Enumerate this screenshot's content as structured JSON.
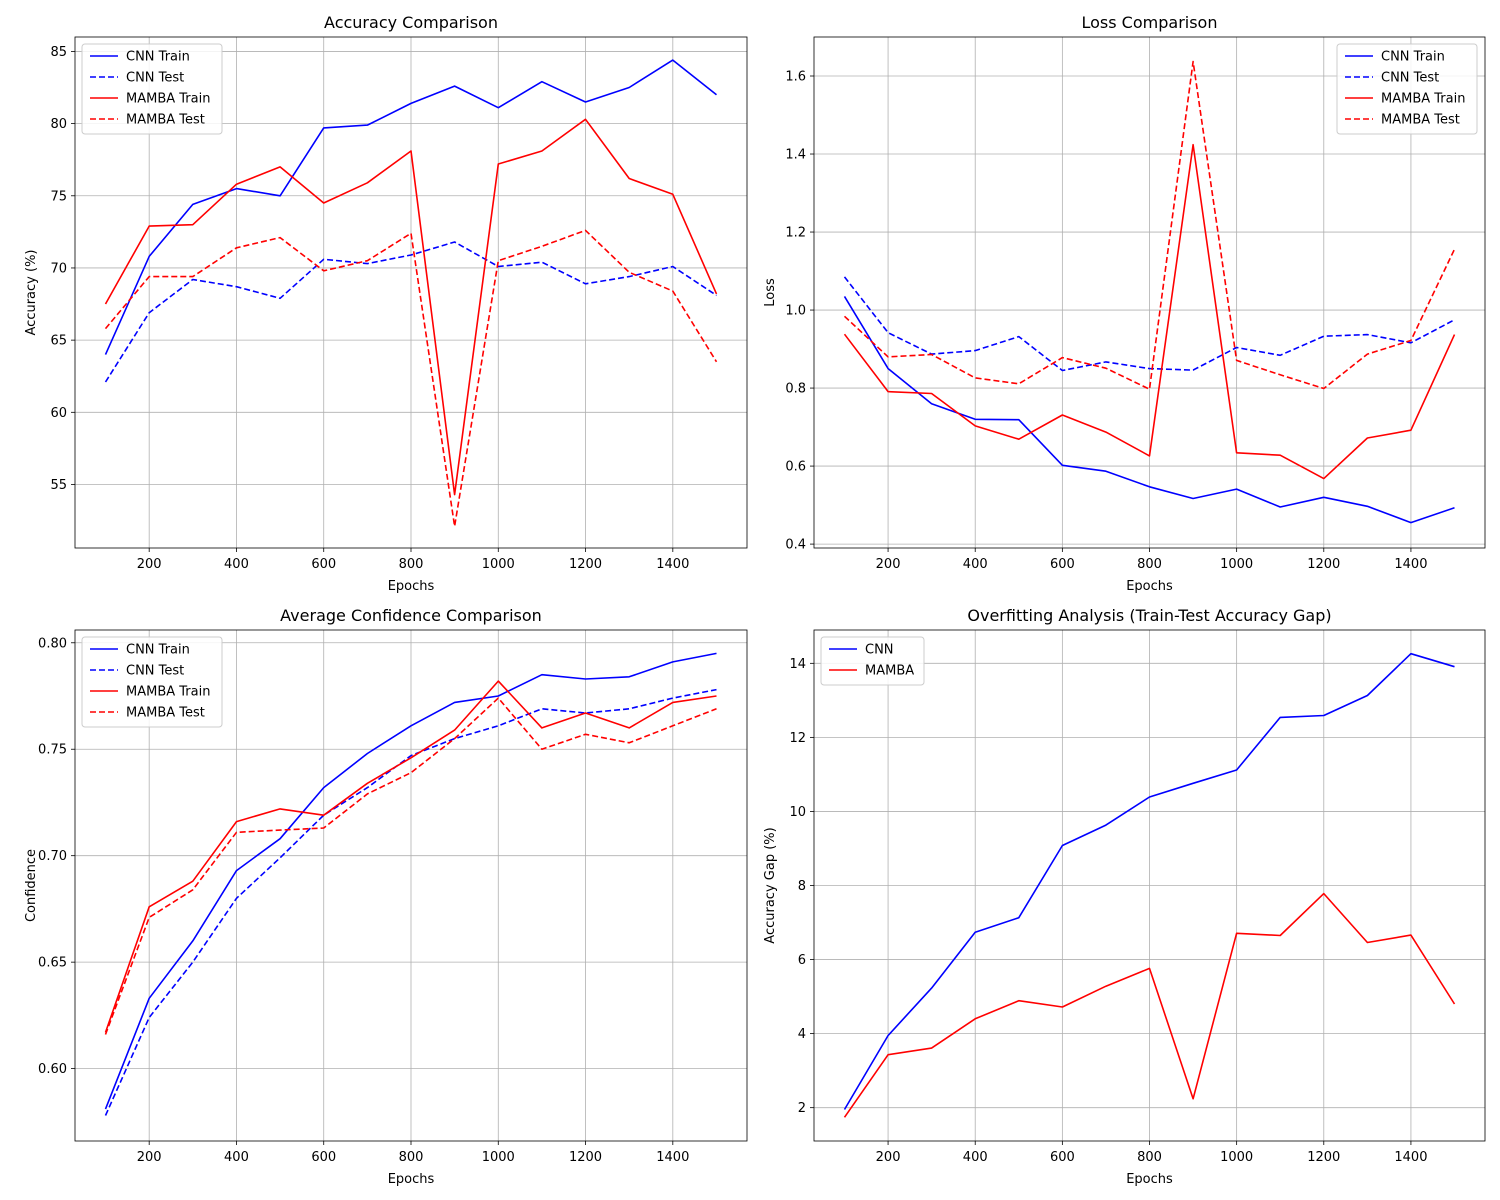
{
  "chart_data": [
    {
      "type": "line",
      "title": "Accuracy Comparison",
      "xlabel": "Epochs",
      "ylabel": "Accuracy (%)",
      "xlim": [
        30,
        1570
      ],
      "ylim": [
        50.6,
        86
      ],
      "xticks": [
        200,
        400,
        600,
        800,
        1000,
        1200,
        1400
      ],
      "yticks": [
        55,
        60,
        65,
        70,
        75,
        80,
        85
      ],
      "grid": true,
      "legend": "top-left",
      "x": [
        100,
        200,
        300,
        400,
        500,
        600,
        700,
        800,
        900,
        1000,
        1100,
        1200,
        1300,
        1400,
        1500
      ],
      "series": [
        {
          "name": "CNN Train",
          "color": "#0000ff",
          "dash": "solid",
          "values": [
            64.0,
            70.8,
            74.4,
            75.5,
            75.0,
            79.7,
            79.9,
            81.4,
            82.6,
            81.1,
            82.9,
            81.5,
            82.5,
            84.4,
            82.0
          ]
        },
        {
          "name": "CNN Test",
          "color": "#0000ff",
          "dash": "dashed",
          "values": [
            62.1,
            66.9,
            69.2,
            68.7,
            67.9,
            70.6,
            70.3,
            70.9,
            71.8,
            70.1,
            70.4,
            68.9,
            69.4,
            70.1,
            68.1
          ]
        },
        {
          "name": "MAMBA Train",
          "color": "#ff0000",
          "dash": "solid",
          "values": [
            67.5,
            72.9,
            73.0,
            75.8,
            77.0,
            74.5,
            75.9,
            78.1,
            54.3,
            77.2,
            78.1,
            80.3,
            76.2,
            75.1,
            68.2
          ]
        },
        {
          "name": "MAMBA Test",
          "color": "#ff0000",
          "dash": "dashed",
          "values": [
            65.8,
            69.4,
            69.4,
            71.4,
            72.1,
            69.8,
            70.5,
            72.4,
            52.1,
            70.5,
            71.5,
            72.6,
            69.7,
            68.4,
            63.5
          ]
        }
      ]
    },
    {
      "type": "line",
      "title": "Loss Comparison",
      "xlabel": "Epochs",
      "ylabel": "Loss",
      "xlim": [
        30,
        1570
      ],
      "ylim": [
        0.39,
        1.7
      ],
      "xticks": [
        200,
        400,
        600,
        800,
        1000,
        1200,
        1400
      ],
      "yticks": [
        0.4,
        0.6,
        0.8,
        1.0,
        1.2,
        1.4,
        1.6
      ],
      "grid": true,
      "legend": "top-right",
      "x": [
        100,
        200,
        300,
        400,
        500,
        600,
        700,
        800,
        900,
        1000,
        1100,
        1200,
        1300,
        1400,
        1500
      ],
      "series": [
        {
          "name": "CNN Train",
          "color": "#0000ff",
          "dash": "solid",
          "values": [
            1.035,
            0.85,
            0.76,
            0.72,
            0.719,
            0.602,
            0.587,
            0.547,
            0.517,
            0.541,
            0.495,
            0.52,
            0.497,
            0.455,
            0.493
          ]
        },
        {
          "name": "CNN Test",
          "color": "#0000ff",
          "dash": "dashed",
          "values": [
            1.085,
            0.942,
            0.887,
            0.896,
            0.932,
            0.845,
            0.867,
            0.85,
            0.846,
            0.904,
            0.884,
            0.933,
            0.937,
            0.916,
            0.975
          ]
        },
        {
          "name": "MAMBA Train",
          "color": "#ff0000",
          "dash": "solid",
          "values": [
            0.938,
            0.791,
            0.786,
            0.703,
            0.669,
            0.731,
            0.687,
            0.626,
            1.424,
            0.634,
            0.628,
            0.568,
            0.672,
            0.692,
            0.937
          ]
        },
        {
          "name": "MAMBA Test",
          "color": "#ff0000",
          "dash": "dashed",
          "values": [
            0.984,
            0.88,
            0.886,
            0.826,
            0.811,
            0.878,
            0.851,
            0.797,
            1.637,
            0.871,
            0.834,
            0.799,
            0.887,
            0.922,
            1.156
          ]
        }
      ]
    },
    {
      "type": "line",
      "title": "Average Confidence Comparison",
      "xlabel": "Epochs",
      "ylabel": "Confidence",
      "xlim": [
        30,
        1570
      ],
      "ylim": [
        0.566,
        0.806
      ],
      "xticks": [
        200,
        400,
        600,
        800,
        1000,
        1200,
        1400
      ],
      "yticks": [
        0.6,
        0.65,
        0.7,
        0.75,
        0.8
      ],
      "grid": true,
      "legend": "top-left",
      "x": [
        100,
        200,
        300,
        400,
        500,
        600,
        700,
        800,
        900,
        1000,
        1100,
        1200,
        1300,
        1400,
        1500
      ],
      "series": [
        {
          "name": "CNN Train",
          "color": "#0000ff",
          "dash": "solid",
          "values": [
            0.581,
            0.633,
            0.66,
            0.693,
            0.708,
            0.732,
            0.748,
            0.761,
            0.772,
            0.775,
            0.785,
            0.783,
            0.784,
            0.791,
            0.795
          ]
        },
        {
          "name": "CNN Test",
          "color": "#0000ff",
          "dash": "dashed",
          "values": [
            0.578,
            0.624,
            0.65,
            0.68,
            0.699,
            0.719,
            0.732,
            0.747,
            0.755,
            0.761,
            0.769,
            0.767,
            0.769,
            0.774,
            0.778
          ]
        },
        {
          "name": "MAMBA Train",
          "color": "#ff0000",
          "dash": "solid",
          "values": [
            0.617,
            0.676,
            0.688,
            0.716,
            0.722,
            0.719,
            0.734,
            0.746,
            0.759,
            0.782,
            0.76,
            0.767,
            0.76,
            0.772,
            0.775
          ]
        },
        {
          "name": "MAMBA Test",
          "color": "#ff0000",
          "dash": "dashed",
          "values": [
            0.616,
            0.671,
            0.684,
            0.711,
            0.712,
            0.713,
            0.729,
            0.739,
            0.755,
            0.774,
            0.75,
            0.757,
            0.753,
            0.761,
            0.769
          ]
        }
      ]
    },
    {
      "type": "line",
      "title": "Overfitting Analysis (Train-Test Accuracy Gap)",
      "xlabel": "Epochs",
      "ylabel": "Accuracy Gap (%)",
      "xlim": [
        30,
        1570
      ],
      "ylim": [
        1.1,
        14.9
      ],
      "xticks": [
        200,
        400,
        600,
        800,
        1000,
        1200,
        1400
      ],
      "yticks": [
        2,
        4,
        6,
        8,
        10,
        12,
        14
      ],
      "grid": true,
      "legend": "top-left",
      "x": [
        100,
        200,
        300,
        400,
        500,
        600,
        700,
        800,
        900,
        1000,
        1100,
        1200,
        1300,
        1400,
        1500
      ],
      "series": [
        {
          "name": "CNN",
          "color": "#0000ff",
          "dash": "solid",
          "values": [
            1.95,
            3.95,
            5.23,
            6.74,
            7.13,
            9.08,
            9.63,
            10.39,
            10.76,
            11.12,
            12.54,
            12.59,
            13.13,
            14.26,
            13.91
          ]
        },
        {
          "name": "MAMBA",
          "color": "#ff0000",
          "dash": "solid",
          "values": [
            1.74,
            3.43,
            3.61,
            4.4,
            4.89,
            4.72,
            5.28,
            5.76,
            2.24,
            6.71,
            6.65,
            7.78,
            6.46,
            6.66,
            4.8
          ]
        }
      ]
    }
  ]
}
